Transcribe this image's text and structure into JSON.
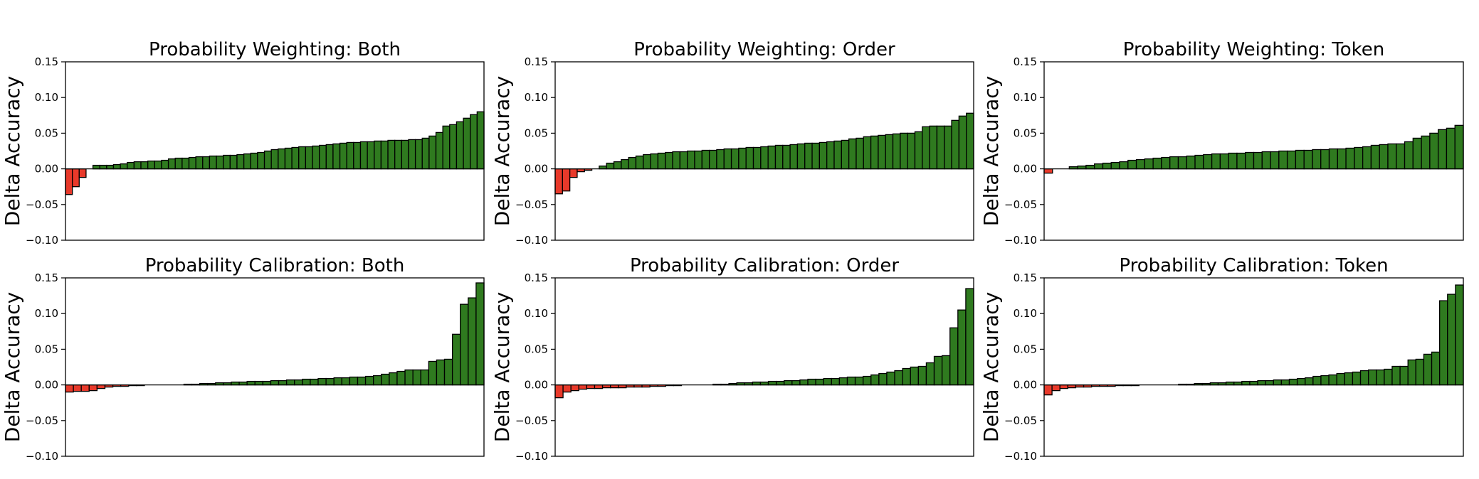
{
  "colors": {
    "positive": "#2f7a1f",
    "negative": "#e8392a",
    "edge": "#000000",
    "axis": "#000000"
  },
  "chart_data": [
    {
      "type": "bar",
      "title": "Probability Weighting: Both",
      "ylabel": "Delta Accuracy",
      "ylim": [
        -0.1,
        0.15
      ],
      "yticks": [
        "0.15",
        "0.10",
        "0.05",
        "0.00",
        "−0.05",
        "−0.10"
      ],
      "ytick_values": [
        0.15,
        0.1,
        0.05,
        0.0,
        -0.05,
        -0.1
      ],
      "grid": false,
      "values": [
        -0.036,
        -0.025,
        -0.012,
        0.0,
        0.005,
        0.005,
        0.005,
        0.006,
        0.007,
        0.009,
        0.01,
        0.01,
        0.011,
        0.011,
        0.012,
        0.014,
        0.015,
        0.015,
        0.016,
        0.017,
        0.017,
        0.018,
        0.018,
        0.019,
        0.019,
        0.02,
        0.021,
        0.022,
        0.023,
        0.025,
        0.027,
        0.028,
        0.029,
        0.03,
        0.031,
        0.031,
        0.032,
        0.033,
        0.034,
        0.035,
        0.036,
        0.037,
        0.037,
        0.038,
        0.038,
        0.039,
        0.039,
        0.04,
        0.04,
        0.04,
        0.041,
        0.041,
        0.043,
        0.046,
        0.051,
        0.06,
        0.062,
        0.066,
        0.071,
        0.076,
        0.08
      ]
    },
    {
      "type": "bar",
      "title": "Probability Weighting: Order",
      "ylabel": "Delta Accuracy",
      "ylim": [
        -0.1,
        0.15
      ],
      "yticks": [
        "0.15",
        "0.10",
        "0.05",
        "0.00",
        "−0.05",
        "−0.10"
      ],
      "ytick_values": [
        0.15,
        0.1,
        0.05,
        0.0,
        -0.05,
        -0.1
      ],
      "grid": false,
      "values": [
        -0.035,
        -0.031,
        -0.012,
        -0.004,
        -0.002,
        0.0,
        0.004,
        0.008,
        0.01,
        0.013,
        0.016,
        0.018,
        0.02,
        0.021,
        0.022,
        0.023,
        0.024,
        0.024,
        0.025,
        0.025,
        0.026,
        0.026,
        0.027,
        0.028,
        0.028,
        0.029,
        0.03,
        0.03,
        0.031,
        0.032,
        0.033,
        0.033,
        0.034,
        0.035,
        0.036,
        0.036,
        0.037,
        0.038,
        0.039,
        0.04,
        0.042,
        0.043,
        0.045,
        0.046,
        0.047,
        0.048,
        0.049,
        0.05,
        0.05,
        0.052,
        0.059,
        0.06,
        0.06,
        0.06,
        0.068,
        0.074,
        0.078
      ]
    },
    {
      "type": "bar",
      "title": "Probability Weighting: Token",
      "ylabel": "Delta Accuracy",
      "ylim": [
        -0.1,
        0.15
      ],
      "yticks": [
        "0.15",
        "0.10",
        "0.05",
        "0.00",
        "−0.05",
        "−0.10"
      ],
      "ytick_values": [
        0.15,
        0.1,
        0.05,
        0.0,
        -0.05,
        -0.1
      ],
      "grid": false,
      "values": [
        -0.006,
        0.0,
        0.0,
        0.003,
        0.004,
        0.005,
        0.007,
        0.008,
        0.009,
        0.01,
        0.012,
        0.013,
        0.014,
        0.015,
        0.016,
        0.017,
        0.017,
        0.018,
        0.019,
        0.02,
        0.021,
        0.021,
        0.022,
        0.022,
        0.023,
        0.023,
        0.024,
        0.024,
        0.025,
        0.025,
        0.026,
        0.026,
        0.027,
        0.027,
        0.028,
        0.028,
        0.029,
        0.03,
        0.031,
        0.033,
        0.034,
        0.035,
        0.035,
        0.038,
        0.043,
        0.046,
        0.05,
        0.055,
        0.057,
        0.061
      ]
    },
    {
      "type": "bar",
      "title": "Probability Calibration: Both",
      "ylabel": "Delta Accuracy",
      "ylim": [
        -0.1,
        0.15
      ],
      "yticks": [
        "0.15",
        "0.10",
        "0.05",
        "0.00",
        "−0.05",
        "−0.10"
      ],
      "ytick_values": [
        0.15,
        0.1,
        0.05,
        0.0,
        -0.05,
        -0.1
      ],
      "grid": false,
      "values": [
        -0.01,
        -0.009,
        -0.009,
        -0.008,
        -0.005,
        -0.003,
        -0.002,
        -0.002,
        -0.001,
        -0.001,
        0.0,
        0.0,
        0.0,
        0.0,
        0.0,
        0.001,
        0.001,
        0.002,
        0.002,
        0.003,
        0.003,
        0.004,
        0.004,
        0.005,
        0.005,
        0.005,
        0.006,
        0.006,
        0.007,
        0.007,
        0.008,
        0.008,
        0.009,
        0.009,
        0.01,
        0.01,
        0.011,
        0.011,
        0.012,
        0.013,
        0.015,
        0.017,
        0.019,
        0.021,
        0.021,
        0.021,
        0.033,
        0.035,
        0.036,
        0.071,
        0.113,
        0.122,
        0.143
      ]
    },
    {
      "type": "bar",
      "title": "Probability Calibration: Order",
      "ylabel": "Delta Accuracy",
      "ylim": [
        -0.1,
        0.15
      ],
      "yticks": [
        "0.15",
        "0.10",
        "0.05",
        "0.00",
        "−0.05",
        "−0.10"
      ],
      "ytick_values": [
        0.15,
        0.1,
        0.05,
        0.0,
        -0.05,
        -0.1
      ],
      "grid": false,
      "values": [
        -0.018,
        -0.01,
        -0.008,
        -0.006,
        -0.005,
        -0.005,
        -0.004,
        -0.004,
        -0.004,
        -0.003,
        -0.003,
        -0.003,
        -0.002,
        -0.002,
        -0.001,
        -0.001,
        0.0,
        0.0,
        0.0,
        0.0,
        0.001,
        0.001,
        0.002,
        0.003,
        0.003,
        0.004,
        0.004,
        0.005,
        0.005,
        0.006,
        0.006,
        0.007,
        0.008,
        0.008,
        0.009,
        0.009,
        0.01,
        0.011,
        0.011,
        0.012,
        0.014,
        0.016,
        0.018,
        0.02,
        0.023,
        0.025,
        0.026,
        0.031,
        0.04,
        0.041,
        0.08,
        0.105,
        0.135
      ]
    },
    {
      "type": "bar",
      "title": "Probability Calibration: Token",
      "ylabel": "Delta Accuracy",
      "ylim": [
        -0.1,
        0.15
      ],
      "yticks": [
        "0.15",
        "0.10",
        "0.05",
        "0.00",
        "−0.05",
        "−0.10"
      ],
      "ytick_values": [
        0.15,
        0.1,
        0.05,
        0.0,
        -0.05,
        -0.1
      ],
      "grid": false,
      "values": [
        -0.014,
        -0.008,
        -0.005,
        -0.004,
        -0.003,
        -0.003,
        -0.002,
        -0.002,
        -0.002,
        -0.001,
        -0.001,
        -0.001,
        0.0,
        0.0,
        0.0,
        0.0,
        0.0,
        0.001,
        0.001,
        0.002,
        0.002,
        0.003,
        0.003,
        0.004,
        0.004,
        0.005,
        0.005,
        0.006,
        0.006,
        0.007,
        0.007,
        0.008,
        0.009,
        0.01,
        0.012,
        0.013,
        0.014,
        0.016,
        0.017,
        0.018,
        0.02,
        0.021,
        0.021,
        0.022,
        0.026,
        0.026,
        0.035,
        0.036,
        0.043,
        0.046,
        0.118,
        0.127,
        0.14
      ]
    }
  ]
}
